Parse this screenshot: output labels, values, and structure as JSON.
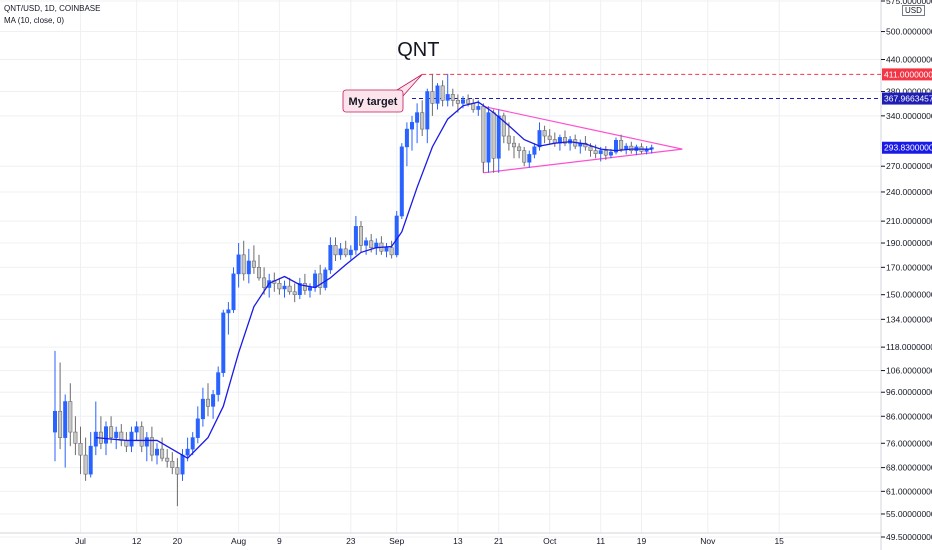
{
  "header": {
    "symbol_line": "QNT/USD, 1D, COINBASE",
    "indicator_line": "MA (10, close, 0)"
  },
  "currency_label": "USD",
  "colors": {
    "candle_body": "#c8c8c8",
    "candle_border": "#6b6b6b",
    "blue_candle": "#2962ff",
    "ma_line": "#1a1ae6",
    "target_line": "#f23645",
    "level_line": "#1e1eb4",
    "triangle": "#ff4fd0",
    "current_price": "#1a1ae6",
    "grid": "#eef0f3"
  },
  "annotations": {
    "title_text": "QNT",
    "callout_text": "My target"
  },
  "chart_data": {
    "type": "candlestick",
    "scale": "log",
    "ylim": [
      49.5,
      575
    ],
    "y_ticks": [
      575.0,
      500.0,
      440.0,
      380.0,
      340.0,
      270.0,
      240.0,
      210.0,
      190.0,
      170.0,
      150.0,
      134.0,
      118.0,
      106.0,
      96.0,
      86.0,
      76.0,
      68.0,
      61.0,
      55.0,
      49.5
    ],
    "y_tick_labels": [
      "575.00000000",
      "500.00000000",
      "440.00000000",
      "380.00000000",
      "340.00000000",
      "270.00000000",
      "240.00000000",
      "210.00000000",
      "190.00000000",
      "170.00000000",
      "150.00000000",
      "134.00000000",
      "118.00000000",
      "106.00000000",
      "96.00000000",
      "86.00000000",
      "76.00000000",
      "68.00000000",
      "61.00000000",
      "55.00000000",
      "49.50000000"
    ],
    "x_ticks": [
      "Jul",
      "12",
      "20",
      "Aug",
      "9",
      "23",
      "Sep",
      "13",
      "21",
      "Oct",
      "11",
      "19",
      "Nov",
      "15"
    ],
    "x_tick_dates": [
      "2021-07-01",
      "2021-07-12",
      "2021-07-20",
      "2021-08-01",
      "2021-08-09",
      "2021-08-23",
      "2021-09-01",
      "2021-09-13",
      "2021-09-21",
      "2021-10-01",
      "2021-10-11",
      "2021-10-19",
      "2021-11-01",
      "2021-11-15"
    ],
    "candles": [
      {
        "date": "2021-06-26",
        "o": 80,
        "h": 116,
        "l": 70,
        "c": 88
      },
      {
        "date": "2021-06-27",
        "o": 88,
        "h": 110,
        "l": 74,
        "c": 78
      },
      {
        "date": "2021-06-28",
        "o": 78,
        "h": 95,
        "l": 68,
        "c": 92
      },
      {
        "date": "2021-06-29",
        "o": 92,
        "h": 100,
        "l": 75,
        "c": 80
      },
      {
        "date": "2021-06-30",
        "o": 80,
        "h": 86,
        "l": 72,
        "c": 76
      },
      {
        "date": "2021-07-01",
        "o": 76,
        "h": 82,
        "l": 66,
        "c": 72
      },
      {
        "date": "2021-07-02",
        "o": 72,
        "h": 78,
        "l": 64,
        "c": 66
      },
      {
        "date": "2021-07-03",
        "o": 66,
        "h": 80,
        "l": 65,
        "c": 75
      },
      {
        "date": "2021-07-04",
        "o": 75,
        "h": 92,
        "l": 72,
        "c": 80
      },
      {
        "date": "2021-07-05",
        "o": 80,
        "h": 86,
        "l": 74,
        "c": 76
      },
      {
        "date": "2021-07-06",
        "o": 76,
        "h": 84,
        "l": 72,
        "c": 82
      },
      {
        "date": "2021-07-07",
        "o": 82,
        "h": 86,
        "l": 76,
        "c": 78
      },
      {
        "date": "2021-07-08",
        "o": 78,
        "h": 82,
        "l": 74,
        "c": 80
      },
      {
        "date": "2021-07-09",
        "o": 80,
        "h": 83,
        "l": 75,
        "c": 77
      },
      {
        "date": "2021-07-10",
        "o": 77,
        "h": 80,
        "l": 73,
        "c": 75
      },
      {
        "date": "2021-07-11",
        "o": 75,
        "h": 82,
        "l": 73,
        "c": 80
      },
      {
        "date": "2021-07-12",
        "o": 80,
        "h": 84,
        "l": 77,
        "c": 82
      },
      {
        "date": "2021-07-13",
        "o": 82,
        "h": 84,
        "l": 73,
        "c": 75
      },
      {
        "date": "2021-07-14",
        "o": 75,
        "h": 80,
        "l": 70,
        "c": 78
      },
      {
        "date": "2021-07-15",
        "o": 78,
        "h": 82,
        "l": 70,
        "c": 72
      },
      {
        "date": "2021-07-16",
        "o": 72,
        "h": 76,
        "l": 69,
        "c": 74
      },
      {
        "date": "2021-07-17",
        "o": 74,
        "h": 78,
        "l": 70,
        "c": 71
      },
      {
        "date": "2021-07-18",
        "o": 71,
        "h": 74,
        "l": 68,
        "c": 70
      },
      {
        "date": "2021-07-19",
        "o": 70,
        "h": 73,
        "l": 66,
        "c": 68
      },
      {
        "date": "2021-07-20",
        "o": 68,
        "h": 71,
        "l": 57,
        "c": 66
      },
      {
        "date": "2021-07-21",
        "o": 66,
        "h": 74,
        "l": 64,
        "c": 72
      },
      {
        "date": "2021-07-22",
        "o": 72,
        "h": 78,
        "l": 70,
        "c": 74
      },
      {
        "date": "2021-07-23",
        "o": 74,
        "h": 80,
        "l": 72,
        "c": 78
      },
      {
        "date": "2021-07-24",
        "o": 78,
        "h": 90,
        "l": 76,
        "c": 85
      },
      {
        "date": "2021-07-25",
        "o": 85,
        "h": 98,
        "l": 82,
        "c": 93
      },
      {
        "date": "2021-07-26",
        "o": 93,
        "h": 100,
        "l": 86,
        "c": 90
      },
      {
        "date": "2021-07-27",
        "o": 90,
        "h": 97,
        "l": 85,
        "c": 95
      },
      {
        "date": "2021-07-28",
        "o": 95,
        "h": 108,
        "l": 92,
        "c": 105
      },
      {
        "date": "2021-07-29",
        "o": 105,
        "h": 140,
        "l": 103,
        "c": 138
      },
      {
        "date": "2021-07-30",
        "o": 138,
        "h": 145,
        "l": 125,
        "c": 140
      },
      {
        "date": "2021-07-31",
        "o": 140,
        "h": 170,
        "l": 138,
        "c": 165
      },
      {
        "date": "2021-08-01",
        "o": 165,
        "h": 190,
        "l": 155,
        "c": 180
      },
      {
        "date": "2021-08-02",
        "o": 180,
        "h": 192,
        "l": 160,
        "c": 165
      },
      {
        "date": "2021-08-03",
        "o": 165,
        "h": 185,
        "l": 158,
        "c": 175
      },
      {
        "date": "2021-08-04",
        "o": 175,
        "h": 188,
        "l": 165,
        "c": 170
      },
      {
        "date": "2021-08-05",
        "o": 170,
        "h": 180,
        "l": 160,
        "c": 162
      },
      {
        "date": "2021-08-06",
        "o": 162,
        "h": 170,
        "l": 150,
        "c": 155
      },
      {
        "date": "2021-08-07",
        "o": 155,
        "h": 165,
        "l": 148,
        "c": 160
      },
      {
        "date": "2021-08-08",
        "o": 160,
        "h": 166,
        "l": 152,
        "c": 158
      },
      {
        "date": "2021-08-09",
        "o": 158,
        "h": 162,
        "l": 150,
        "c": 154
      },
      {
        "date": "2021-08-10",
        "o": 154,
        "h": 160,
        "l": 148,
        "c": 156
      },
      {
        "date": "2021-08-11",
        "o": 156,
        "h": 162,
        "l": 150,
        "c": 152
      },
      {
        "date": "2021-08-12",
        "o": 152,
        "h": 158,
        "l": 145,
        "c": 150
      },
      {
        "date": "2021-08-13",
        "o": 150,
        "h": 162,
        "l": 147,
        "c": 158
      },
      {
        "date": "2021-08-14",
        "o": 158,
        "h": 165,
        "l": 150,
        "c": 153
      },
      {
        "date": "2021-08-15",
        "o": 153,
        "h": 158,
        "l": 148,
        "c": 155
      },
      {
        "date": "2021-08-16",
        "o": 155,
        "h": 168,
        "l": 152,
        "c": 165
      },
      {
        "date": "2021-08-17",
        "o": 165,
        "h": 172,
        "l": 150,
        "c": 155
      },
      {
        "date": "2021-08-18",
        "o": 155,
        "h": 170,
        "l": 153,
        "c": 168
      },
      {
        "date": "2021-08-19",
        "o": 168,
        "h": 195,
        "l": 165,
        "c": 188
      },
      {
        "date": "2021-08-20",
        "o": 188,
        "h": 195,
        "l": 175,
        "c": 180
      },
      {
        "date": "2021-08-21",
        "o": 180,
        "h": 190,
        "l": 176,
        "c": 185
      },
      {
        "date": "2021-08-22",
        "o": 185,
        "h": 192,
        "l": 178,
        "c": 180
      },
      {
        "date": "2021-08-23",
        "o": 180,
        "h": 188,
        "l": 176,
        "c": 184
      },
      {
        "date": "2021-08-24",
        "o": 184,
        "h": 215,
        "l": 180,
        "c": 205
      },
      {
        "date": "2021-08-25",
        "o": 205,
        "h": 210,
        "l": 182,
        "c": 188
      },
      {
        "date": "2021-08-26",
        "o": 188,
        "h": 195,
        "l": 180,
        "c": 192
      },
      {
        "date": "2021-08-27",
        "o": 192,
        "h": 198,
        "l": 182,
        "c": 186
      },
      {
        "date": "2021-08-28",
        "o": 186,
        "h": 194,
        "l": 180,
        "c": 190
      },
      {
        "date": "2021-08-29",
        "o": 190,
        "h": 196,
        "l": 180,
        "c": 183
      },
      {
        "date": "2021-08-30",
        "o": 183,
        "h": 190,
        "l": 178,
        "c": 186
      },
      {
        "date": "2021-08-31",
        "o": 186,
        "h": 192,
        "l": 177,
        "c": 180
      },
      {
        "date": "2021-09-01",
        "o": 180,
        "h": 220,
        "l": 178,
        "c": 215
      },
      {
        "date": "2021-09-02",
        "o": 215,
        "h": 300,
        "l": 212,
        "c": 295
      },
      {
        "date": "2021-09-03",
        "o": 295,
        "h": 330,
        "l": 270,
        "c": 320
      },
      {
        "date": "2021-09-04",
        "o": 320,
        "h": 340,
        "l": 290,
        "c": 330
      },
      {
        "date": "2021-09-05",
        "o": 330,
        "h": 360,
        "l": 300,
        "c": 345
      },
      {
        "date": "2021-09-06",
        "o": 345,
        "h": 365,
        "l": 310,
        "c": 320
      },
      {
        "date": "2021-09-07",
        "o": 320,
        "h": 385,
        "l": 300,
        "c": 380
      },
      {
        "date": "2021-09-08",
        "o": 380,
        "h": 412,
        "l": 340,
        "c": 360
      },
      {
        "date": "2021-09-09",
        "o": 360,
        "h": 395,
        "l": 350,
        "c": 390
      },
      {
        "date": "2021-09-10",
        "o": 390,
        "h": 400,
        "l": 355,
        "c": 365
      },
      {
        "date": "2021-09-11",
        "o": 365,
        "h": 412,
        "l": 355,
        "c": 375
      },
      {
        "date": "2021-09-12",
        "o": 375,
        "h": 385,
        "l": 355,
        "c": 365
      },
      {
        "date": "2021-09-13",
        "o": 365,
        "h": 375,
        "l": 345,
        "c": 360
      },
      {
        "date": "2021-09-14",
        "o": 360,
        "h": 372,
        "l": 352,
        "c": 366
      },
      {
        "date": "2021-09-15",
        "o": 366,
        "h": 375,
        "l": 355,
        "c": 360
      },
      {
        "date": "2021-09-16",
        "o": 360,
        "h": 368,
        "l": 345,
        "c": 350
      },
      {
        "date": "2021-09-17",
        "o": 350,
        "h": 365,
        "l": 340,
        "c": 355
      },
      {
        "date": "2021-09-18",
        "o": 355,
        "h": 360,
        "l": 262,
        "c": 275
      },
      {
        "date": "2021-09-19",
        "o": 275,
        "h": 355,
        "l": 262,
        "c": 345
      },
      {
        "date": "2021-09-20",
        "o": 345,
        "h": 350,
        "l": 262,
        "c": 280
      },
      {
        "date": "2021-09-21",
        "o": 280,
        "h": 350,
        "l": 262,
        "c": 340
      },
      {
        "date": "2021-09-22",
        "o": 340,
        "h": 345,
        "l": 300,
        "c": 310
      },
      {
        "date": "2021-09-23",
        "o": 310,
        "h": 330,
        "l": 290,
        "c": 300
      },
      {
        "date": "2021-09-24",
        "o": 300,
        "h": 310,
        "l": 280,
        "c": 295
      },
      {
        "date": "2021-09-25",
        "o": 295,
        "h": 300,
        "l": 280,
        "c": 290
      },
      {
        "date": "2021-09-26",
        "o": 290,
        "h": 295,
        "l": 270,
        "c": 275
      },
      {
        "date": "2021-09-27",
        "o": 275,
        "h": 290,
        "l": 268,
        "c": 285
      },
      {
        "date": "2021-09-28",
        "o": 285,
        "h": 300,
        "l": 280,
        "c": 295
      },
      {
        "date": "2021-09-29",
        "o": 295,
        "h": 330,
        "l": 290,
        "c": 318
      },
      {
        "date": "2021-09-30",
        "o": 318,
        "h": 325,
        "l": 300,
        "c": 310
      },
      {
        "date": "2021-10-01",
        "o": 310,
        "h": 320,
        "l": 298,
        "c": 305
      },
      {
        "date": "2021-10-02",
        "o": 305,
        "h": 315,
        "l": 295,
        "c": 300
      },
      {
        "date": "2021-10-03",
        "o": 300,
        "h": 312,
        "l": 290,
        "c": 308
      },
      {
        "date": "2021-10-04",
        "o": 308,
        "h": 318,
        "l": 296,
        "c": 300
      },
      {
        "date": "2021-10-05",
        "o": 300,
        "h": 310,
        "l": 290,
        "c": 305
      },
      {
        "date": "2021-10-06",
        "o": 305,
        "h": 312,
        "l": 292,
        "c": 296
      },
      {
        "date": "2021-10-07",
        "o": 296,
        "h": 305,
        "l": 286,
        "c": 300
      },
      {
        "date": "2021-10-08",
        "o": 300,
        "h": 310,
        "l": 290,
        "c": 295
      },
      {
        "date": "2021-10-09",
        "o": 295,
        "h": 300,
        "l": 282,
        "c": 290
      },
      {
        "date": "2021-10-10",
        "o": 290,
        "h": 298,
        "l": 280,
        "c": 286
      },
      {
        "date": "2021-10-11",
        "o": 286,
        "h": 295,
        "l": 276,
        "c": 290
      },
      {
        "date": "2021-10-12",
        "o": 290,
        "h": 296,
        "l": 278,
        "c": 284
      },
      {
        "date": "2021-10-13",
        "o": 284,
        "h": 292,
        "l": 280,
        "c": 288
      },
      {
        "date": "2021-10-14",
        "o": 288,
        "h": 308,
        "l": 285,
        "c": 304
      },
      {
        "date": "2021-10-15",
        "o": 304,
        "h": 312,
        "l": 288,
        "c": 292
      },
      {
        "date": "2021-10-16",
        "o": 292,
        "h": 300,
        "l": 285,
        "c": 296
      },
      {
        "date": "2021-10-17",
        "o": 296,
        "h": 302,
        "l": 286,
        "c": 290
      },
      {
        "date": "2021-10-18",
        "o": 290,
        "h": 298,
        "l": 284,
        "c": 295
      },
      {
        "date": "2021-10-19",
        "o": 295,
        "h": 300,
        "l": 286,
        "c": 289
      },
      {
        "date": "2021-10-20",
        "o": 289,
        "h": 296,
        "l": 285,
        "c": 292
      },
      {
        "date": "2021-10-21",
        "o": 292,
        "h": 298,
        "l": 286,
        "c": 294
      }
    ],
    "moving_average": {
      "label": "MA (10, close, 0)",
      "values": [
        {
          "date": "2021-07-04",
          "v": 78
        },
        {
          "date": "2021-07-10",
          "v": 77
        },
        {
          "date": "2021-07-16",
          "v": 77
        },
        {
          "date": "2021-07-22",
          "v": 71
        },
        {
          "date": "2021-07-26",
          "v": 78
        },
        {
          "date": "2021-07-29",
          "v": 90
        },
        {
          "date": "2021-08-01",
          "v": 115
        },
        {
          "date": "2021-08-04",
          "v": 142
        },
        {
          "date": "2021-08-07",
          "v": 158
        },
        {
          "date": "2021-08-10",
          "v": 163
        },
        {
          "date": "2021-08-13",
          "v": 157
        },
        {
          "date": "2021-08-16",
          "v": 155
        },
        {
          "date": "2021-08-19",
          "v": 162
        },
        {
          "date": "2021-08-22",
          "v": 172
        },
        {
          "date": "2021-08-25",
          "v": 182
        },
        {
          "date": "2021-08-28",
          "v": 186
        },
        {
          "date": "2021-08-31",
          "v": 187
        },
        {
          "date": "2021-09-02",
          "v": 200
        },
        {
          "date": "2021-09-05",
          "v": 245
        },
        {
          "date": "2021-09-08",
          "v": 295
        },
        {
          "date": "2021-09-11",
          "v": 335
        },
        {
          "date": "2021-09-14",
          "v": 356
        },
        {
          "date": "2021-09-17",
          "v": 362
        },
        {
          "date": "2021-09-20",
          "v": 345
        },
        {
          "date": "2021-09-23",
          "v": 325
        },
        {
          "date": "2021-09-26",
          "v": 305
        },
        {
          "date": "2021-09-29",
          "v": 296
        },
        {
          "date": "2021-10-02",
          "v": 300
        },
        {
          "date": "2021-10-05",
          "v": 302
        },
        {
          "date": "2021-10-08",
          "v": 299
        },
        {
          "date": "2021-10-11",
          "v": 292
        },
        {
          "date": "2021-10-14",
          "v": 290
        },
        {
          "date": "2021-10-17",
          "v": 292
        },
        {
          "date": "2021-10-21",
          "v": 292
        }
      ]
    },
    "horizontal_levels": [
      {
        "price": 411.0,
        "label": "411.00000000",
        "style": "dashed",
        "color": "#f23645",
        "start_date": "2021-09-06"
      },
      {
        "price": 367.96634578,
        "label": "367.96634578",
        "style": "dashed",
        "color": "#1e1eb4",
        "start_date": "2021-09-04"
      }
    ],
    "current_price": {
      "price": 293.83,
      "label": "293.83000000"
    },
    "triangle": {
      "upper": [
        {
          "date": "2021-09-18",
          "price": 355
        },
        {
          "date": "2021-10-27",
          "price": 292
        }
      ],
      "lower": [
        {
          "date": "2021-09-18",
          "price": 262
        },
        {
          "date": "2021-10-27",
          "price": 292
        }
      ]
    },
    "callout_anchor": {
      "date": "2021-09-06",
      "price": 411
    }
  }
}
